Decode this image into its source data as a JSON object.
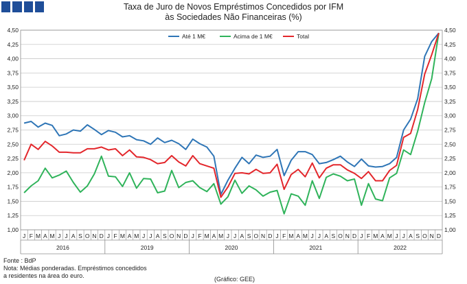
{
  "header": {
    "title_line1": "Taxa de Juro de Novos Empréstimos Concedidos por IFM",
    "title_line2": "às Sociedades Não Financeiras (%)"
  },
  "footer": {
    "source": "Fonte : BdP",
    "note_line1": "Nota: Médias ponderadas. Empréstimos concedidos",
    "note_line2": "a residentes na área do euro.",
    "credit": "(Gráfico: GEE)"
  },
  "chart_data": {
    "type": "line",
    "ylim": [
      1.0,
      4.5
    ],
    "y_ticks": [
      "1,00",
      "1,25",
      "1,50",
      "1,75",
      "2,00",
      "2,25",
      "2,50",
      "2,75",
      "3,00",
      "3,25",
      "3,50",
      "3,75",
      "4,00",
      "4,25",
      "4,50"
    ],
    "month_labels": [
      "J",
      "F",
      "M",
      "A",
      "M",
      "J",
      "J",
      "A",
      "S",
      "O",
      "N",
      "D",
      "J",
      "F",
      "M",
      "A",
      "M",
      "J",
      "J",
      "A",
      "S",
      "O",
      "N",
      "D",
      "J",
      "F",
      "M",
      "A",
      "M",
      "J",
      "J",
      "A",
      "S",
      "O",
      "N",
      "D",
      "J",
      "F",
      "M",
      "A",
      "M",
      "J",
      "J",
      "A",
      "S",
      "O",
      "N",
      "D",
      "J",
      "F",
      "M",
      "A",
      "M",
      "J",
      "J",
      "A",
      "S",
      "O",
      "N",
      "D"
    ],
    "year_labels": [
      "2016",
      "2019",
      "2020",
      "2021",
      "2022"
    ],
    "legend_position": "top",
    "grid": true,
    "series": [
      {
        "name": "Até 1 M€",
        "color": "#2e75b6",
        "values": [
          2.87,
          2.9,
          2.8,
          2.87,
          2.83,
          2.65,
          2.68,
          2.75,
          2.73,
          2.84,
          2.76,
          2.67,
          2.74,
          2.71,
          2.63,
          2.65,
          2.58,
          2.56,
          2.5,
          2.61,
          2.53,
          2.57,
          2.51,
          2.41,
          2.59,
          2.51,
          2.45,
          2.29,
          1.62,
          1.87,
          2.08,
          2.27,
          2.16,
          2.31,
          2.27,
          2.29,
          2.41,
          1.95,
          2.22,
          2.37,
          2.37,
          2.32,
          2.16,
          2.18,
          2.23,
          2.29,
          2.19,
          2.11,
          2.24,
          2.12,
          2.1,
          2.11,
          2.16,
          2.27,
          2.75,
          2.94,
          3.3,
          4.04,
          4.3,
          4.45
        ]
      },
      {
        "name": "Acima de 1 M€",
        "color": "#2fb35a",
        "values": [
          1.65,
          1.77,
          1.86,
          2.08,
          1.91,
          1.96,
          2.03,
          1.83,
          1.66,
          1.77,
          1.98,
          2.29,
          1.94,
          1.93,
          1.76,
          2.0,
          1.73,
          1.9,
          1.89,
          1.65,
          1.68,
          2.04,
          1.74,
          1.83,
          1.86,
          1.74,
          1.67,
          1.81,
          1.45,
          1.58,
          1.87,
          1.64,
          1.77,
          1.7,
          1.59,
          1.66,
          1.69,
          1.28,
          1.63,
          1.59,
          1.43,
          1.86,
          1.55,
          1.92,
          1.98,
          1.94,
          1.86,
          1.89,
          1.43,
          1.81,
          1.54,
          1.51,
          1.91,
          1.99,
          2.4,
          2.32,
          2.73,
          3.23,
          3.65,
          4.45
        ]
      },
      {
        "name": "Total",
        "color": "#e3262b",
        "values": [
          2.22,
          2.5,
          2.41,
          2.55,
          2.47,
          2.36,
          2.36,
          2.35,
          2.35,
          2.42,
          2.42,
          2.45,
          2.4,
          2.42,
          2.3,
          2.4,
          2.28,
          2.27,
          2.23,
          2.16,
          2.18,
          2.3,
          2.19,
          2.12,
          2.3,
          2.16,
          2.12,
          2.08,
          1.57,
          1.75,
          1.99,
          2.0,
          1.98,
          2.06,
          1.99,
          2.0,
          2.15,
          1.71,
          1.97,
          2.06,
          1.93,
          2.17,
          1.91,
          2.08,
          2.14,
          2.14,
          2.05,
          1.99,
          1.9,
          2.02,
          1.86,
          1.86,
          2.04,
          2.13,
          2.62,
          2.69,
          3.11,
          3.73,
          4.07,
          4.45
        ]
      }
    ]
  }
}
